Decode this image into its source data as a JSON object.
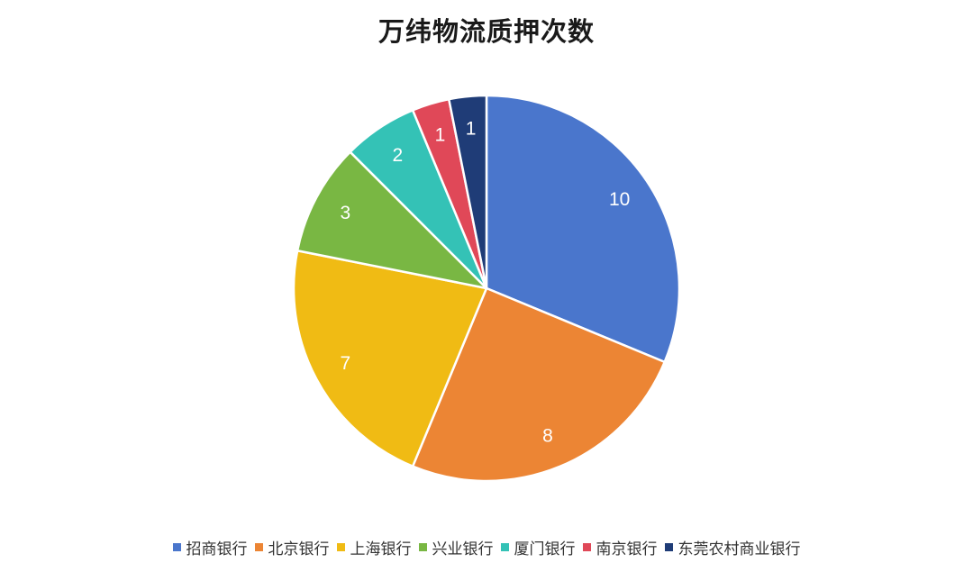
{
  "chart_data": {
    "type": "pie",
    "title": "万纬物流质押次数",
    "categories": [
      "招商银行",
      "北京银行",
      "上海银行",
      "兴业银行",
      "厦门银行",
      "南京银行",
      "东莞农村商业银行"
    ],
    "values": [
      10,
      8,
      7,
      3,
      2,
      1,
      1
    ],
    "colors": [
      "#4a76cc",
      "#ec8534",
      "#f0bb14",
      "#79b743",
      "#34c2b6",
      "#e04858",
      "#1f3c77"
    ],
    "legend_position": "bottom",
    "start_angle": "top, clockwise"
  }
}
